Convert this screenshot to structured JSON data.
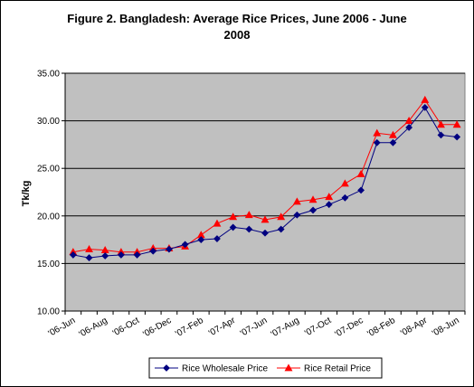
{
  "chart_data": {
    "type": "line",
    "title_line1": "Figure 2. Bangladesh: Average Rice Prices, June 2006 - June",
    "title_line2": "2008",
    "ylabel": "Tk/kg",
    "xlabel": "",
    "ylim": [
      10,
      35
    ],
    "yticks": [
      "10.00",
      "15.00",
      "20.00",
      "25.00",
      "30.00",
      "35.00"
    ],
    "y_tick_values": [
      10,
      15,
      20,
      25,
      30,
      35
    ],
    "xtick_labels": [
      "'06-Jun",
      "'06-Aug",
      "'06-Oct",
      "'06-Dec",
      "'07-Feb",
      "'07-Apr",
      "'07-Jun",
      "'07-Aug",
      "'07-Oct",
      "'07-Dec",
      "'08-Feb",
      "'08-Apr",
      "'08-Jun"
    ],
    "grid": "horizontal",
    "legend_position": "bottom",
    "plot_background": "#c0c0c0",
    "x": [
      "2006-06-01",
      "2006-07-01",
      "2006-08-01",
      "2006-09-01",
      "2006-10-01",
      "2006-11-01",
      "2006-12-01",
      "2007-01-01",
      "2007-02-01",
      "2007-03-01",
      "2007-04-01",
      "2007-05-01",
      "2007-06-01",
      "2007-07-01",
      "2007-08-01",
      "2007-09-01",
      "2007-10-01",
      "2007-11-01",
      "2007-12-01",
      "2008-01-01",
      "2008-02-01",
      "2008-03-01",
      "2008-04-01",
      "2008-05-01",
      "2008-06-01"
    ],
    "series": [
      {
        "name": "Rice Wholesale Price",
        "color": "#000080",
        "marker": "diamond",
        "values": [
          15.9,
          15.6,
          15.8,
          15.9,
          15.9,
          16.3,
          16.5,
          17.0,
          17.5,
          17.6,
          18.8,
          18.6,
          18.2,
          18.6,
          20.1,
          20.6,
          21.2,
          21.9,
          22.7,
          27.7,
          27.7,
          29.3,
          31.4,
          28.5,
          28.3
        ]
      },
      {
        "name": "Rice Retail Price",
        "color": "#ff0000",
        "marker": "triangle",
        "values": [
          16.2,
          16.5,
          16.4,
          16.2,
          16.2,
          16.6,
          16.6,
          16.8,
          18.0,
          19.2,
          19.9,
          20.1,
          19.6,
          19.9,
          21.5,
          21.7,
          22.0,
          23.4,
          24.4,
          28.7,
          28.5,
          30.0,
          32.2,
          29.6,
          29.6
        ]
      }
    ]
  }
}
